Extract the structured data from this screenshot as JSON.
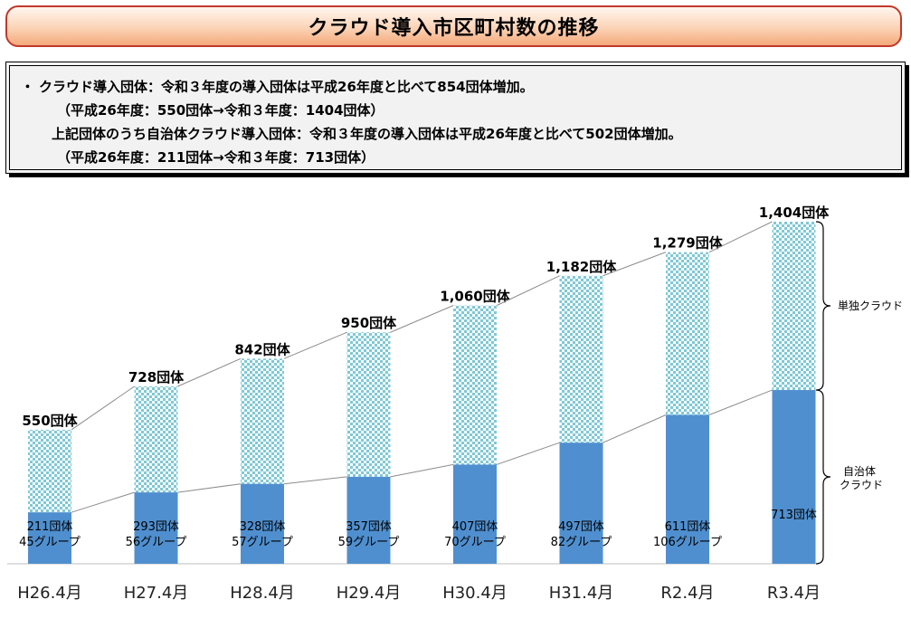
{
  "title": "クラウド導入市区町村数の推移",
  "info": {
    "bullet": "・",
    "line1": "クラウド導入団体：令和３年度の導入団体は平成26年度と比べて854団体増加。",
    "line2": "（平成26年度：550団体→令和３年度：1404団体）",
    "line3": "上記団体のうち自治体クラウド導入団体：令和３年度の導入団体は平成26年度と比べて502団体増加。",
    "line4": "（平成26年度：211団体→令和３年度：713団体）"
  },
  "colors": {
    "jichitai": "#4f8fcf",
    "tandoku_a": "#7ec9d6",
    "tandoku_b": "#ffffff",
    "line": "#8c8c8c"
  },
  "chart_data": {
    "type": "bar",
    "stacked": true,
    "categories": [
      "H26.4月",
      "H27.4月",
      "H28.4月",
      "H29.4月",
      "H30.4月",
      "H31.4月",
      "R2.4月",
      "R3.4月"
    ],
    "series": [
      {
        "name": "自治体クラウド",
        "values": [
          211,
          293,
          328,
          357,
          407,
          497,
          611,
          713
        ]
      },
      {
        "name": "単独クラウド",
        "values": [
          339,
          435,
          514,
          593,
          653,
          685,
          668,
          691
        ]
      }
    ],
    "totals": [
      550,
      728,
      842,
      950,
      1060,
      1182,
      1279,
      1404
    ],
    "total_labels": [
      "550団体",
      "728団体",
      "842団体",
      "950団体",
      "1,060団体",
      "1,182団体",
      "1,279団体",
      "1,404団体"
    ],
    "jichitai_labels": [
      "211団体",
      "293団体",
      "328団体",
      "357団体",
      "407団体",
      "497団体",
      "611団体",
      "713団体"
    ],
    "group_labels": [
      "45グループ",
      "56グループ",
      "57グループ",
      "59グループ",
      "70グループ",
      "82グループ",
      "106グループ",
      ""
    ],
    "legend": [
      "単独クラウド",
      "自治体\nクラウド"
    ],
    "ylim": [
      0,
      1404
    ],
    "grid": false,
    "legend_position": "right"
  }
}
